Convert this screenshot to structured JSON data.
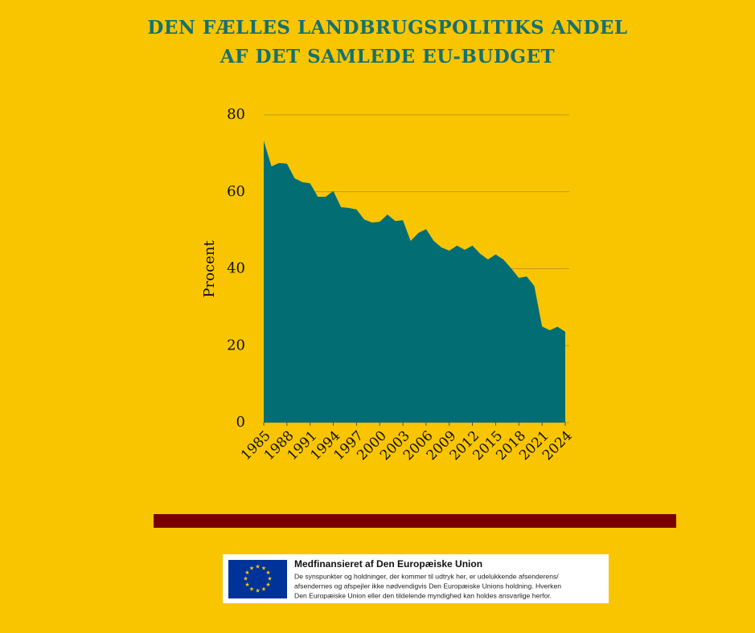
{
  "chart_data": {
    "type": "area",
    "title": [
      "DEN FÆLLES LANDBRUGSPOLITIKS ANDEL",
      "AF DET SAMLEDE EU-BUDGET"
    ],
    "y_label": "Procent",
    "x": [
      1985,
      1986,
      1987,
      1988,
      1989,
      1990,
      1991,
      1992,
      1993,
      1994,
      1995,
      1996,
      1997,
      1998,
      1999,
      2000,
      2001,
      2002,
      2003,
      2004,
      2005,
      2006,
      2007,
      2008,
      2009,
      2010,
      2011,
      2012,
      2013,
      2014,
      2015,
      2016,
      2017,
      2018,
      2019,
      2020,
      2021,
      2022,
      2023,
      2024
    ],
    "values": [
      73.3,
      66.6,
      67.5,
      67.3,
      63.5,
      62.5,
      62.2,
      58.7,
      58.7,
      60.2,
      56,
      55.8,
      55.4,
      52.8,
      52,
      52.2,
      54.1,
      52.4,
      52.6,
      47.2,
      49.3,
      50.3,
      47.2,
      45.5,
      44.7,
      46,
      44.9,
      46,
      43.9,
      42.4,
      43.7,
      42.4,
      40.1,
      37.6,
      38,
      35.5,
      25,
      24,
      24.9,
      23.6
    ],
    "color": "#036d74",
    "xlim": [
      1985,
      2024
    ],
    "xticks": [
      1985,
      1988,
      1991,
      1994,
      1997,
      2000,
      2003,
      2006,
      2009,
      2012,
      2015,
      2018,
      2021,
      2024
    ],
    "ylim": [
      0,
      80
    ],
    "yticks": [
      0,
      20,
      40,
      60,
      80
    ],
    "grid": true
  },
  "footer": {
    "heading": "Medfinansieret af Den Europæiske Union",
    "lines": [
      "De synspunkter og holdninger, der kommer til udtryk her, er udelukkende afsenderens/",
      "afsendernes og afspejler ikke nødvendigvis Den Europæiske Unions holdning. Hverken",
      "Den Europæiske Union eller den tildelende myndighed kan holdes ansvarlige herfor."
    ]
  }
}
